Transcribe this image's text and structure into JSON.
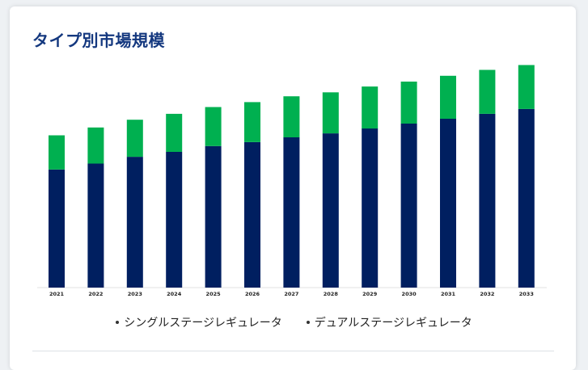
{
  "page": {
    "title": "タイプ別市場規模"
  },
  "colors": {
    "series1": "#001f60",
    "series2": "#00b050",
    "title": "#14387f"
  },
  "chart_data": {
    "type": "bar",
    "stacked": true,
    "title": "タイプ別市場規模",
    "xlabel": "",
    "ylabel": "",
    "categories": [
      "2021",
      "2022",
      "2023",
      "2024",
      "2025",
      "2026",
      "2027",
      "2028",
      "2029",
      "2030",
      "2031",
      "2032",
      "2033"
    ],
    "series": [
      {
        "name": "シングルステージレギュレータ",
        "color": "#001f60",
        "values": [
          121,
          127,
          134,
          139,
          145,
          149,
          154,
          158,
          163,
          168,
          173,
          178,
          183
        ]
      },
      {
        "name": "デュアルステージレギュレータ",
        "color": "#00b050",
        "values": [
          35,
          37,
          38,
          39,
          40,
          41,
          42,
          42,
          43,
          43,
          44,
          45,
          45
        ]
      }
    ],
    "ylim": [
      0,
      240
    ],
    "grid": false,
    "legend": "bottom"
  }
}
